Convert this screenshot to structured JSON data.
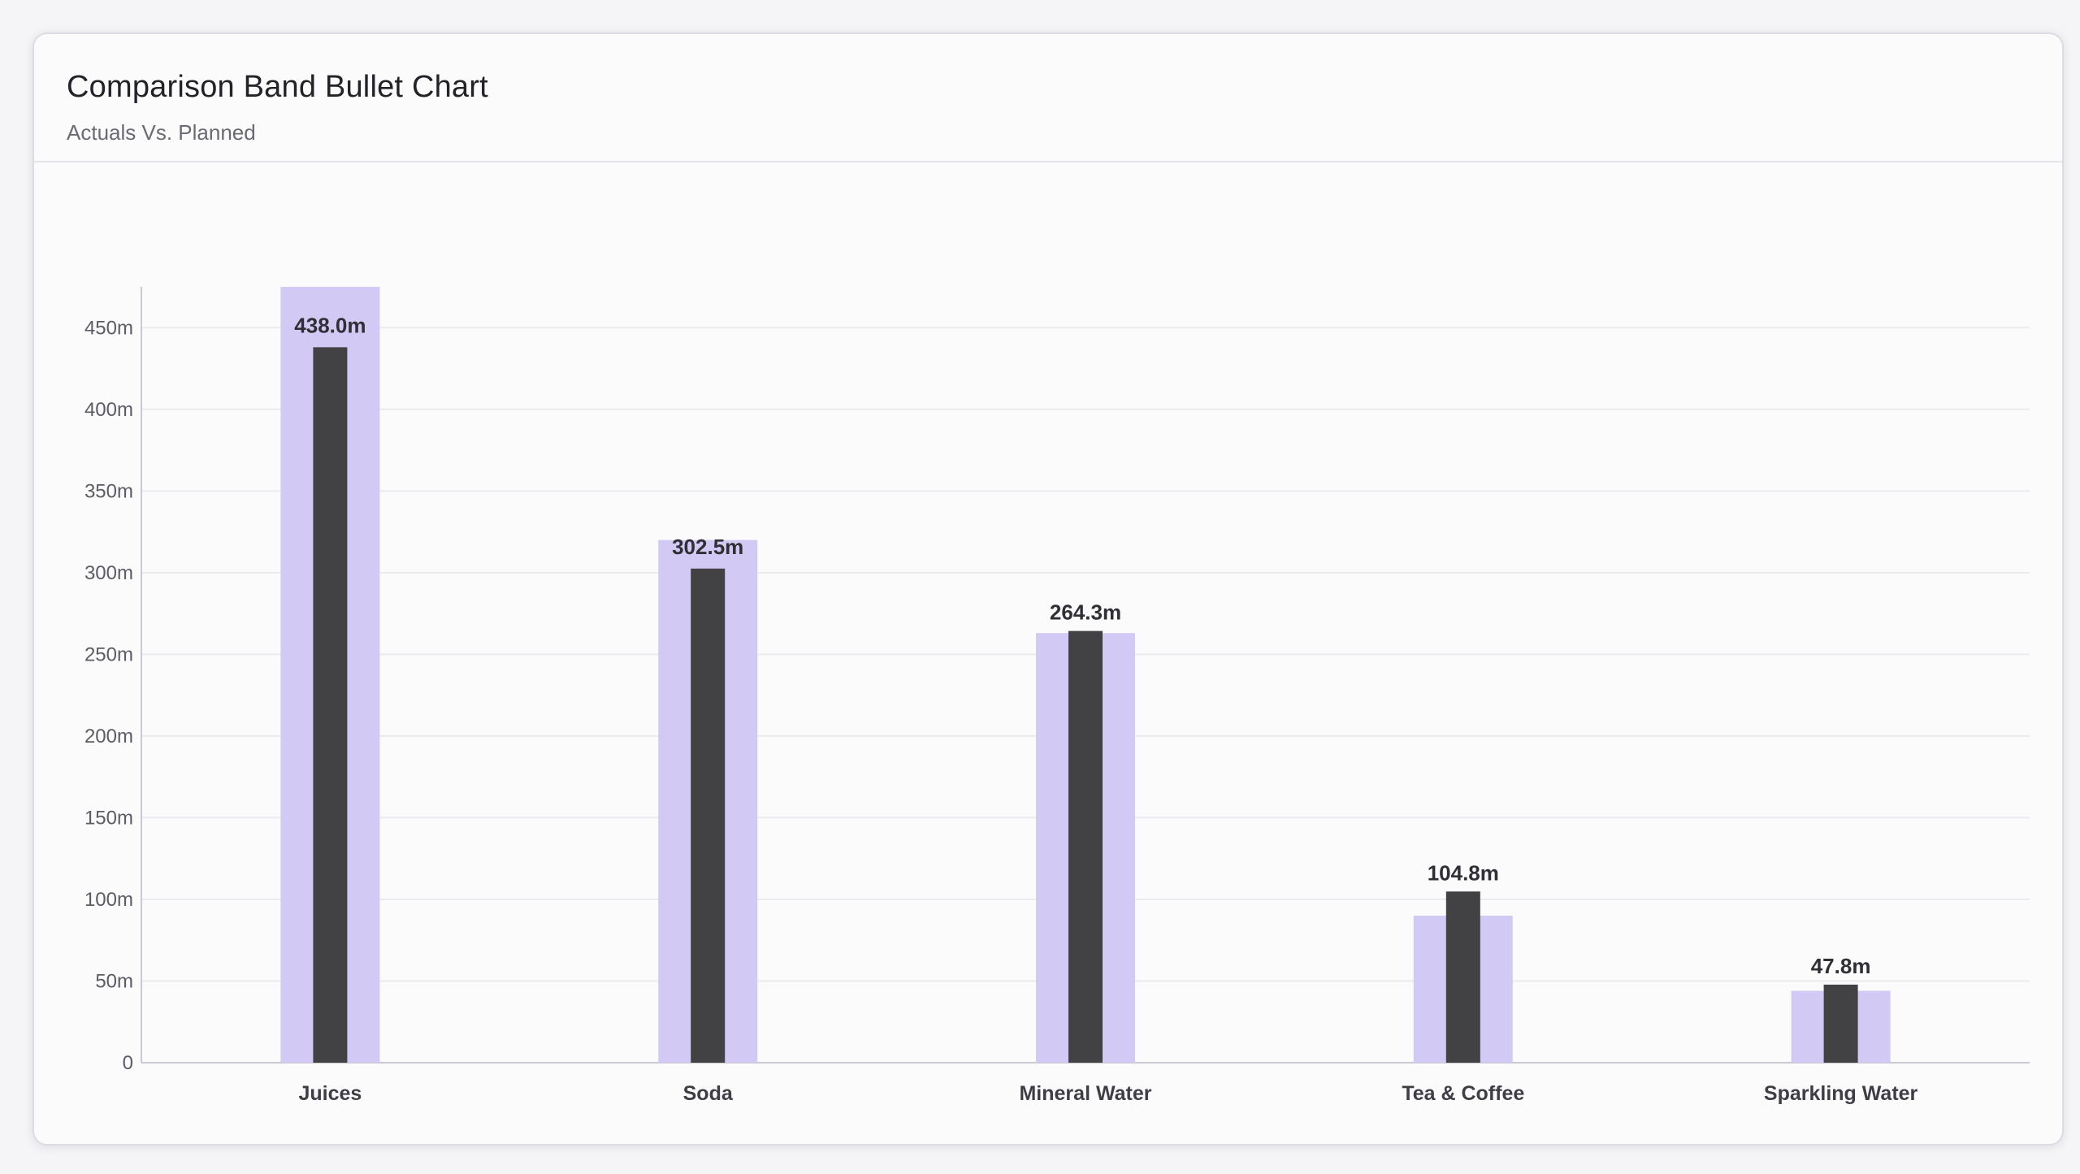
{
  "header": {
    "title": "Comparison Band Bullet Chart",
    "subtitle": "Actuals Vs. Planned"
  },
  "colors": {
    "band": "#d2c9f4",
    "actual": "#424244",
    "grid": "#ebebef",
    "axis": "#c9c9cf"
  },
  "chart_data": {
    "type": "bar",
    "title": "Comparison Band Bullet Chart",
    "subtitle": "Actuals Vs. Planned",
    "categories": [
      "Juices",
      "Soda",
      "Mineral Water",
      "Tea & Coffee",
      "Sparkling Water"
    ],
    "series": [
      {
        "name": "Planned",
        "values": [
          475,
          320,
          263,
          90,
          44
        ]
      },
      {
        "name": "Actuals",
        "values": [
          438.0,
          302.5,
          264.3,
          104.8,
          47.8
        ]
      }
    ],
    "data_labels": [
      "438.0m",
      "302.5m",
      "264.3m",
      "104.8m",
      "47.8m"
    ],
    "y_ticks": [
      0,
      50,
      100,
      150,
      200,
      250,
      300,
      350,
      400,
      450
    ],
    "y_tick_labels": [
      "0",
      "50m",
      "100m",
      "150m",
      "200m",
      "250m",
      "300m",
      "350m",
      "400m",
      "450m"
    ],
    "ylim": [
      0,
      475
    ],
    "xlabel": "",
    "ylabel": "",
    "grid": true,
    "legend": "none"
  }
}
